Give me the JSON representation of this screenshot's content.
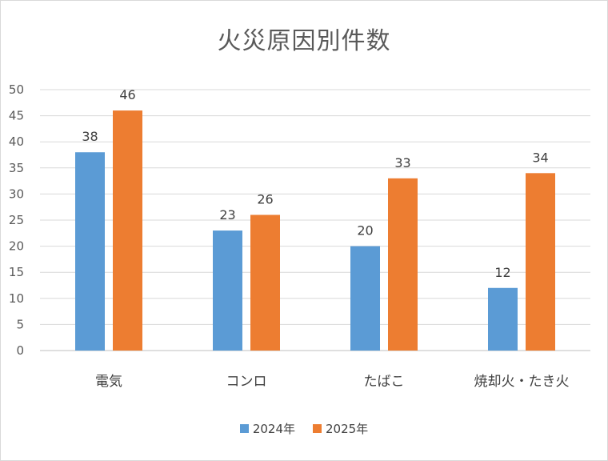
{
  "chart_data": {
    "type": "bar",
    "title": "火災原因別件数",
    "categories": [
      "電気",
      "コンロ",
      "たばこ",
      "焼却火・たき火"
    ],
    "series": [
      {
        "name": "2024年",
        "values": [
          38,
          23,
          20,
          12
        ],
        "color": "#5b9bd5"
      },
      {
        "name": "2025年",
        "values": [
          46,
          26,
          33,
          34
        ],
        "color": "#ed7d31"
      }
    ],
    "ylim": [
      0,
      50
    ],
    "yticks": [
      0,
      5,
      10,
      15,
      20,
      25,
      30,
      35,
      40,
      45,
      50
    ],
    "grid": true,
    "legend": "bottom",
    "data_labels": true
  }
}
